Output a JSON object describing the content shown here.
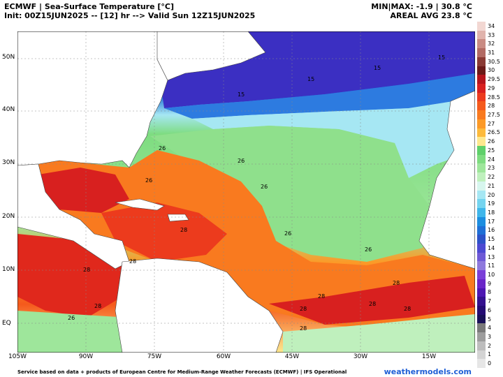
{
  "header": {
    "line1_left": "ECMWF | Sea-Surface Temperature [°C]",
    "line2_left": "Init: 00Z15JUN2025 -- [12] hr --> Valid Sun 12Z15JUN2025",
    "line1_right": "MIN|MAX: -1.9 | 30.8 °C",
    "line2_right": "AREAL AVG 23.8 °C"
  },
  "axes": {
    "latitudes": [
      "50N",
      "40N",
      "30N",
      "20N",
      "10N",
      "EQ"
    ],
    "longitudes": [
      "105W",
      "90W",
      "75W",
      "60W",
      "45W",
      "30W",
      "15W"
    ]
  },
  "colorbar": {
    "labels": [
      "34",
      "33",
      "32",
      "31",
      "30.5",
      "30",
      "29.5",
      "29",
      "28.5",
      "28",
      "27.5",
      "27",
      "26.5",
      "26",
      "25",
      "24",
      "23",
      "22",
      "21",
      "20",
      "19",
      "18",
      "17",
      "16",
      "15",
      "14",
      "13",
      "11",
      "10",
      "9",
      "8",
      "7",
      "6",
      "5",
      "4",
      "3",
      "2",
      "1",
      "0"
    ],
    "colors": [
      "#f2d7d2",
      "#e0b3ac",
      "#c98b83",
      "#b26a63",
      "#8a3a34",
      "#6b1a18",
      "#b5141c",
      "#d8201f",
      "#ec3b1d",
      "#f55a1c",
      "#f97a1f",
      "#fc9a27",
      "#fdba3b",
      "#fde88e",
      "#5fd06a",
      "#7edc80",
      "#9ee69b",
      "#bff0bd",
      "#d7f6ee",
      "#a6e7f3",
      "#74d4ef",
      "#3fb6ea",
      "#1c8ee0",
      "#1f6fd6",
      "#2c52c8",
      "#4c49d2",
      "#6e59d6",
      "#8e79dd",
      "#7a3fd8",
      "#6a25c8",
      "#4d16b2",
      "#34108f",
      "#240b74",
      "#191058",
      "#7a7a7a",
      "#9d9d9d",
      "#bdbdbd",
      "#d4d4d4",
      "#e6e6e6"
    ]
  },
  "contour_labels": [
    "15",
    "15",
    "15",
    "15",
    "26",
    "26",
    "26",
    "26",
    "26",
    "26",
    "26",
    "28",
    "28",
    "28",
    "28",
    "28",
    "28",
    "28",
    "28",
    "28",
    "28"
  ],
  "footer": {
    "credit": "Service based on data + products of European Centre for Medium-Range Weather Forecasts (ECMWF) | IFS Operational",
    "site": "weathermodels.com"
  }
}
